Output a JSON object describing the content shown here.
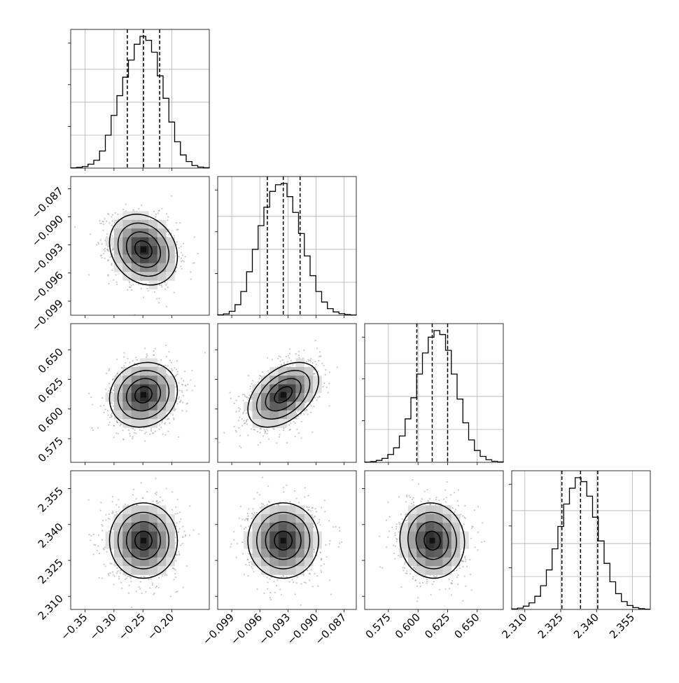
{
  "chart_data": {
    "type": "corner",
    "parameters": [
      {
        "index": 0,
        "range": [
          -0.375,
          -0.135
        ],
        "ticks": [
          -0.35,
          -0.3,
          -0.25,
          -0.2
        ],
        "tick_labels": [
          "−0.35",
          "−0.30",
          "−0.25",
          "−0.20"
        ],
        "quantiles": [
          -0.277,
          -0.249,
          -0.221
        ],
        "hist": [
          0.002,
          0.006,
          0.012,
          0.03,
          0.06,
          0.13,
          0.25,
          0.4,
          0.55,
          0.69,
          0.82,
          0.94,
          1.0,
          0.97,
          0.88,
          0.7,
          0.53,
          0.35,
          0.2,
          0.1,
          0.05,
          0.02,
          0.008,
          0.003
        ],
        "hist_max_frac": 0.95
      },
      {
        "index": 1,
        "range": [
          -0.1005,
          -0.0857
        ],
        "ticks": [
          -0.099,
          -0.096,
          -0.093,
          -0.09,
          -0.087
        ],
        "tick_labels": [
          "−0.099",
          "−0.096",
          "−0.093",
          "−0.090",
          "−0.087"
        ],
        "quantiles": [
          -0.0952,
          -0.0935,
          -0.0917
        ],
        "hist": [
          0.003,
          0.01,
          0.03,
          0.08,
          0.18,
          0.33,
          0.5,
          0.68,
          0.82,
          0.94,
          0.99,
          1.0,
          0.9,
          0.78,
          0.62,
          0.45,
          0.3,
          0.18,
          0.1,
          0.05,
          0.025,
          0.012,
          0.005,
          0.002
        ],
        "hist_max_frac": 0.95
      },
      {
        "index": 2,
        "range": [
          0.555,
          0.672
        ],
        "ticks": [
          0.575,
          0.6,
          0.625,
          0.65
        ],
        "tick_labels": [
          "0.575",
          "0.600",
          "0.625",
          "0.650"
        ],
        "quantiles": [
          0.599,
          0.612,
          0.625
        ],
        "hist": [
          0.002,
          0.006,
          0.015,
          0.03,
          0.06,
          0.11,
          0.2,
          0.33,
          0.49,
          0.67,
          0.83,
          0.95,
          1.0,
          0.97,
          0.85,
          0.67,
          0.48,
          0.3,
          0.17,
          0.09,
          0.045,
          0.02,
          0.008,
          0.003
        ],
        "hist_max_frac": 0.95
      },
      {
        "index": 3,
        "range": [
          2.3045,
          2.3625
        ],
        "ticks": [
          2.31,
          2.325,
          2.34,
          2.355
        ],
        "tick_labels": [
          "2.310",
          "2.325",
          "2.340",
          "2.355"
        ],
        "quantiles": [
          2.3255,
          2.3333,
          2.3405
        ],
        "hist": [
          0.004,
          0.01,
          0.025,
          0.05,
          0.1,
          0.18,
          0.3,
          0.46,
          0.63,
          0.8,
          0.92,
          1.0,
          0.97,
          0.86,
          0.7,
          0.52,
          0.35,
          0.21,
          0.12,
          0.06,
          0.03,
          0.014,
          0.006,
          0.002
        ],
        "hist_max_frac": 0.95
      }
    ],
    "pairs": [
      {
        "x": 0,
        "y": 1,
        "mean": [
          -0.249,
          -0.0935
        ],
        "std": [
          0.028,
          0.0018
        ],
        "corr": -0.2
      },
      {
        "x": 0,
        "y": 2,
        "mean": [
          -0.249,
          0.612
        ],
        "std": [
          0.028,
          0.013
        ],
        "corr": 0.12
      },
      {
        "x": 1,
        "y": 2,
        "mean": [
          -0.0935,
          0.612
        ],
        "std": [
          0.0018,
          0.013
        ],
        "corr": 0.45
      },
      {
        "x": 0,
        "y": 3,
        "mean": [
          -0.249,
          2.3333
        ],
        "std": [
          0.028,
          0.0075
        ],
        "corr": 0.0
      },
      {
        "x": 1,
        "y": 3,
        "mean": [
          -0.0935,
          2.3333
        ],
        "std": [
          0.0018,
          0.0075
        ],
        "corr": 0.0
      },
      {
        "x": 2,
        "y": 3,
        "mean": [
          0.612,
          2.3333
        ],
        "std": [
          0.013,
          0.0075
        ],
        "corr": -0.05
      }
    ],
    "contour_levels_sigma": [
      0.5,
      1.0,
      1.5,
      2.0
    ],
    "grid": true,
    "title": "",
    "xlabel": "",
    "ylabel": ""
  }
}
